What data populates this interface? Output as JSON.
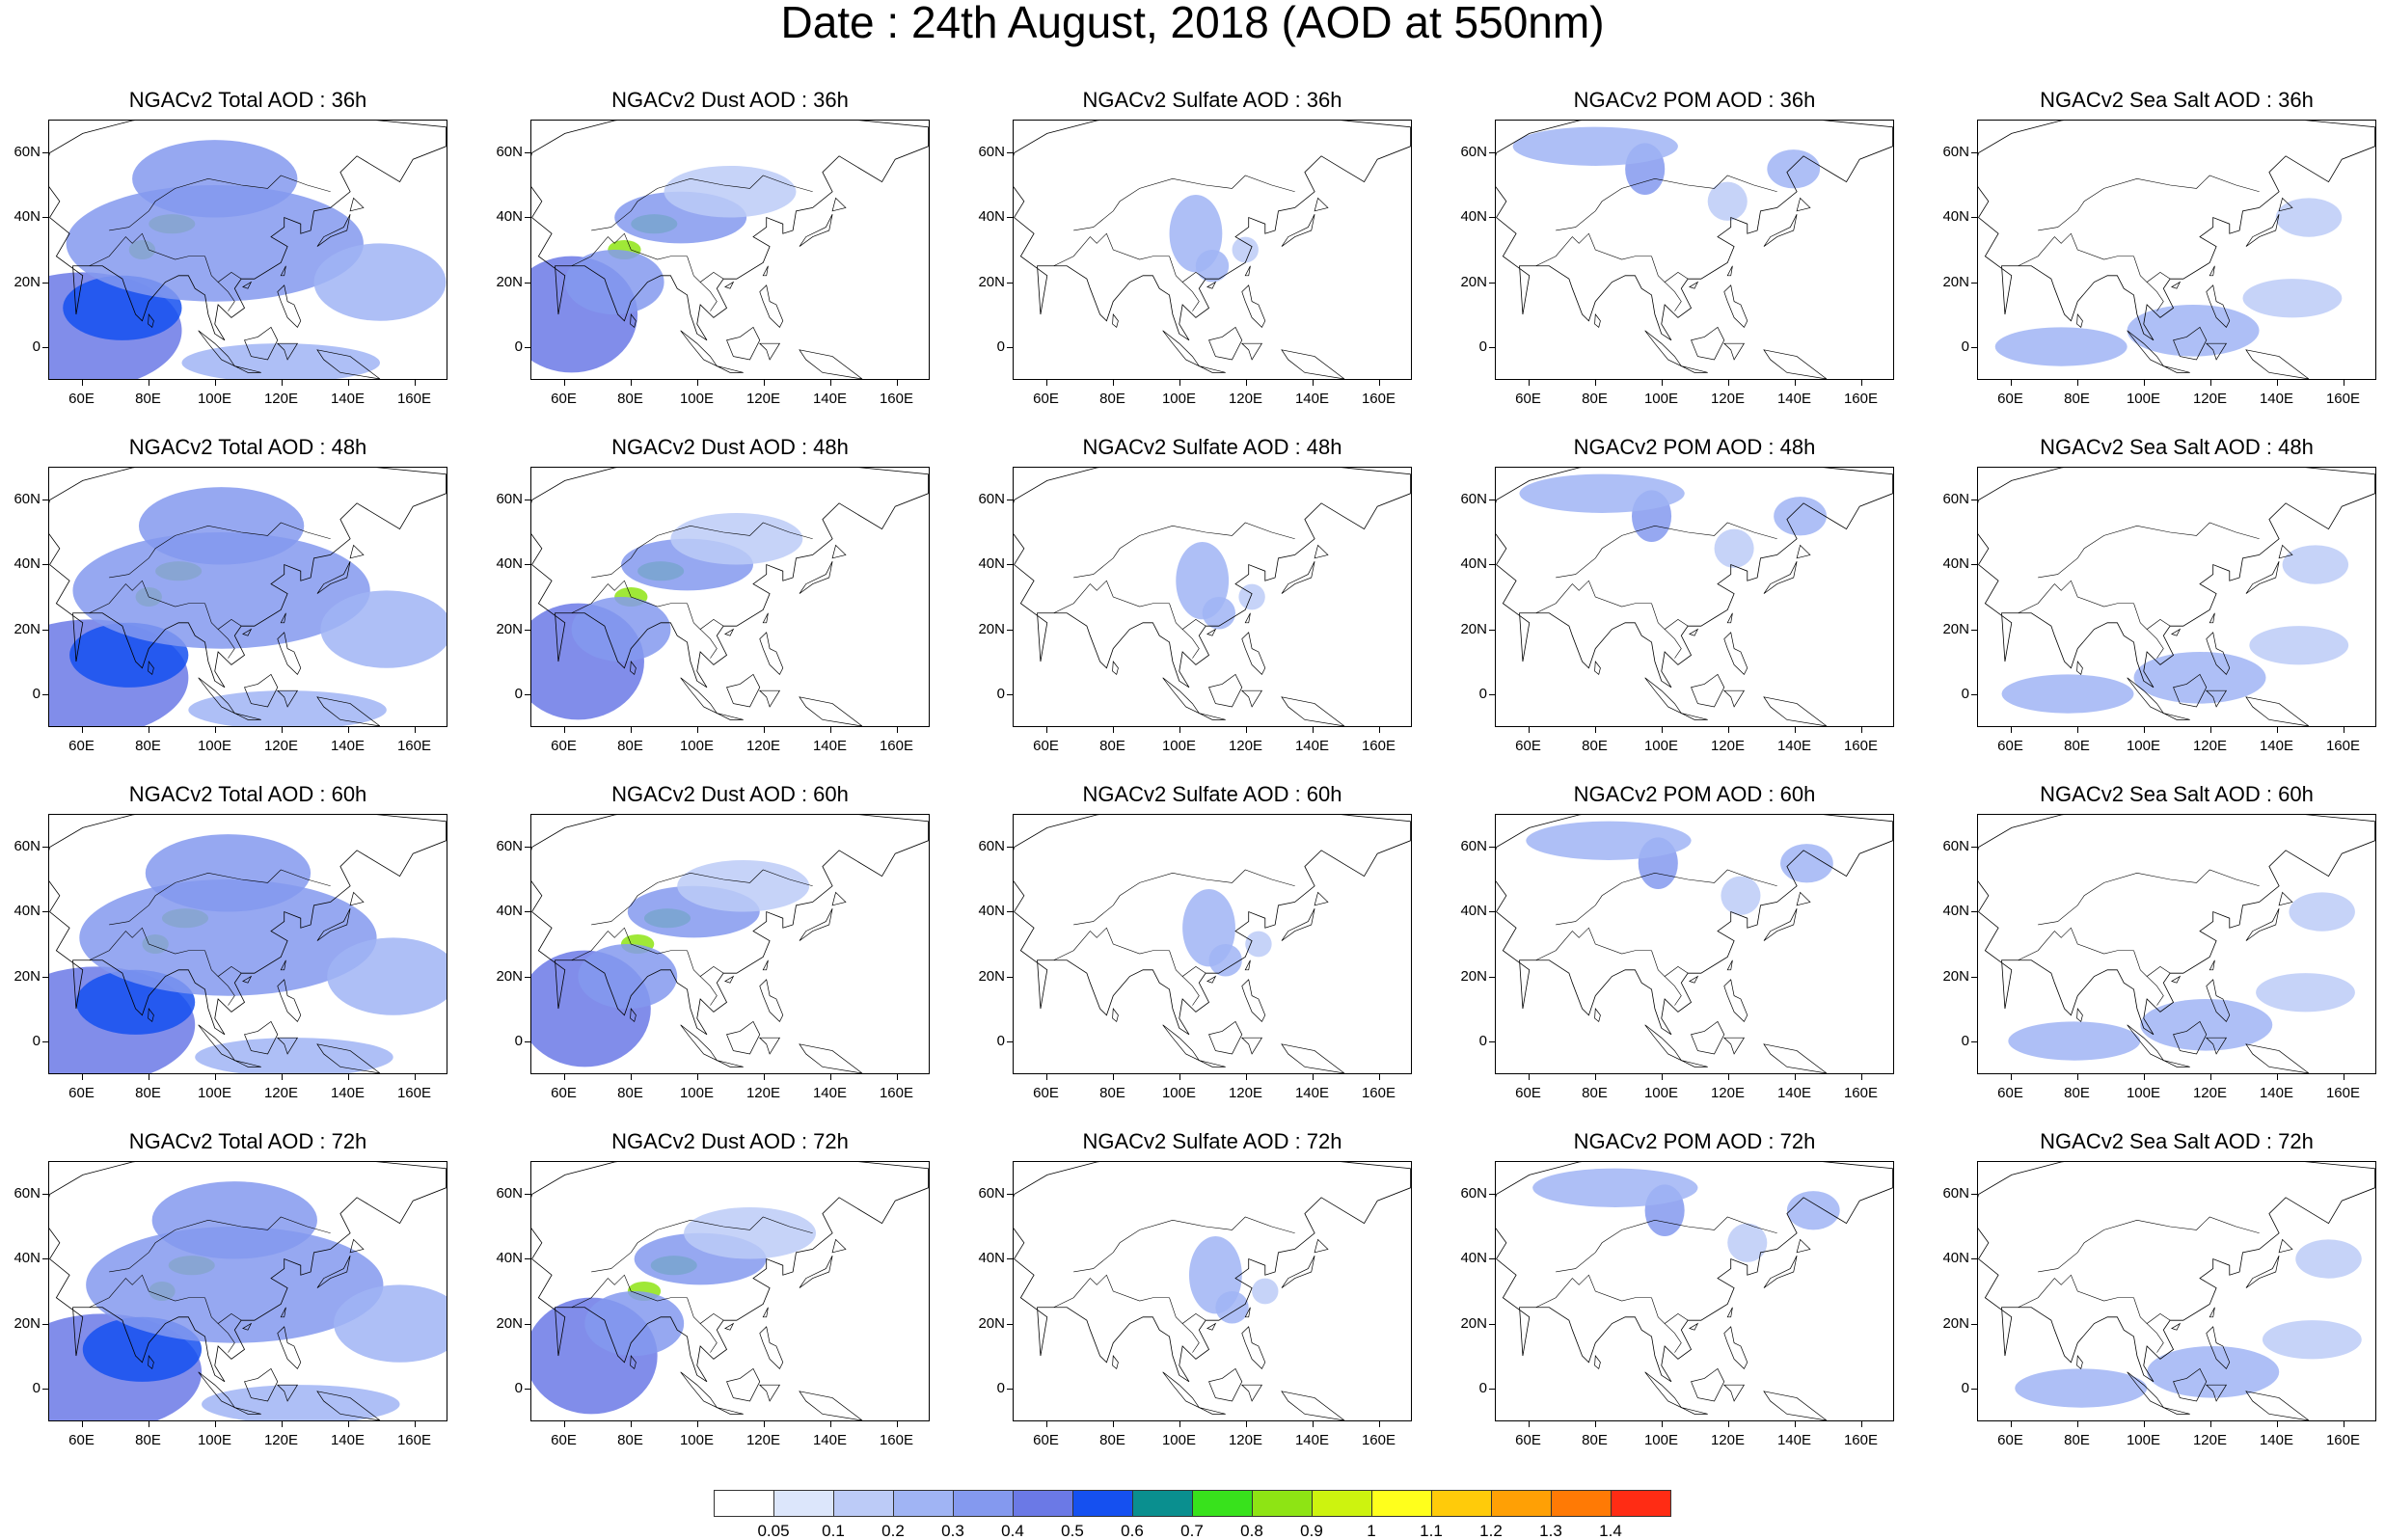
{
  "title": "Date : 24th August, 2018 (AOD at 550nm)",
  "panel_titles": [
    [
      "NGACv2 Total AOD : 36h",
      "NGACv2 Dust AOD : 36h",
      "NGACv2 Sulfate AOD : 36h",
      "NGACv2 POM AOD : 36h",
      "NGACv2 Sea Salt AOD : 36h"
    ],
    [
      "NGACv2 Total AOD : 48h",
      "NGACv2 Dust AOD : 48h",
      "NGACv2 Sulfate AOD : 48h",
      "NGACv2 POM AOD : 48h",
      "NGACv2 Sea Salt AOD : 48h"
    ],
    [
      "NGACv2 Total AOD : 60h",
      "NGACv2 Dust AOD : 60h",
      "NGACv2 Sulfate AOD : 60h",
      "NGACv2 POM AOD : 60h",
      "NGACv2 Sea Salt AOD : 60h"
    ],
    [
      "NGACv2 Total AOD : 72h",
      "NGACv2 Dust AOD : 72h",
      "NGACv2 Sulfate AOD : 72h",
      "NGACv2 POM AOD : 72h",
      "NGACv2 Sea Salt  AOD : 72h"
    ]
  ],
  "lat_ticks": [
    "60N",
    "40N",
    "20N",
    "0"
  ],
  "lon_ticks": [
    "60E",
    "80E",
    "100E",
    "120E",
    "140E",
    "160E"
  ],
  "colorbar": {
    "labels": [
      "0.05",
      "0.1",
      "0.2",
      "0.3",
      "0.4",
      "0.5",
      "0.6",
      "0.7",
      "0.8",
      "0.9",
      "1",
      "1.1",
      "1.2",
      "1.3",
      "1.4"
    ],
    "colors": [
      "#ffffff",
      "#dce6fb",
      "#bccbf7",
      "#a0b4f4",
      "#8499ef",
      "#6b79e6",
      "#1550f0",
      "#0a8f8f",
      "#38e21c",
      "#8ee414",
      "#cdf30f",
      "#ffff1c",
      "#ffcb0a",
      "#ffa005",
      "#ff7a05",
      "#ff2c14"
    ]
  }
}
